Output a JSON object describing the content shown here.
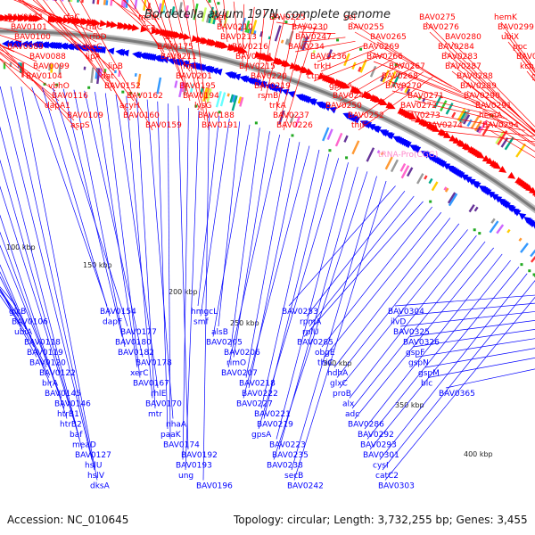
{
  "header": {
    "title": "Bordetella avium 197N, complete genome"
  },
  "footer": {
    "accession_label": "Accession:",
    "accession": "NC_010645",
    "topology_label": "Topology:",
    "topology": "circular",
    "length_label": "Length:",
    "length": "3,732,255 bp",
    "genes_label": "Genes:",
    "genes": "3,455"
  },
  "colors": {
    "forward": "#ff0000",
    "reverse": "#0000ff",
    "backbone": "#7a7a7a",
    "rna": "#ff88cc"
  },
  "scale_ticks": [
    "100 kbp",
    "150 kbp",
    "200 kbp",
    "250 kbp",
    "300 kbp",
    "350 kbp",
    "400 kbp"
  ],
  "forward_labels": [
    "BAV0111",
    "BAV0101",
    "BAV0100",
    "BAV0089",
    "BAV0088",
    "BAV0099",
    "BAV0104",
    "vbhO",
    "BAV0116",
    "dapA1",
    "BAV0109",
    "aspS",
    "rfaC",
    "rfbC",
    "rfbD",
    "dacC",
    "lipA",
    "lipB",
    "dat",
    "BAV0152",
    "BAV0162",
    "acyH",
    "BAV0160",
    "BAV0159",
    "metK",
    "cca",
    "slt",
    "BAV0175",
    "BAV0211",
    "fmt",
    "BAV0201",
    "BAV0195",
    "BAV0194",
    "lysG",
    "BAV0188",
    "BAV0191",
    "def",
    "BAV0210",
    "BAV0213",
    "BAV0216",
    "BAV0214",
    "BAV0215",
    "BAV0220",
    "BAV0219",
    "rsmB",
    "trkA",
    "BAV0237",
    "BAV0226",
    "BAV0225",
    "BAV0230",
    "BAV0247",
    "BAV0234",
    "BAV0236",
    "trkH",
    "ctpA",
    "gpmA",
    "BAV0244",
    "BAV0250",
    "BAV0252",
    "thiF",
    "cel",
    "BAV0255",
    "BAV0265",
    "BAV0269",
    "BAV0266",
    "BAV0267",
    "BAV0268",
    "BAV0270",
    "BAV0271",
    "BAV0272",
    "BAV0273",
    "BAV0274",
    "BAV0275",
    "BAV0276",
    "BAV0280",
    "BAV0284",
    "BAV0283",
    "BAV0287",
    "BAV0288",
    "BAV0289",
    "BAV0290",
    "BAV0291",
    "hemA",
    "BAV0294",
    "hemK",
    "BAV0299",
    "ubiX",
    "ppc",
    "BAV0318",
    "kch",
    "gspE"
  ],
  "rna_labels": [
    "tRNA-Pro(CGG)"
  ],
  "reverse_labels": [
    "glcB",
    "BAV0106",
    "ubiA",
    "BAV0118",
    "BAV0119",
    "BAV0120",
    "BAV0122",
    "birA",
    "BAV0145",
    "BAV0146",
    "htrB1",
    "htrB2",
    "baf",
    "meaD",
    "BAV0127",
    "hslU",
    "hslV",
    "dksA",
    "BAV0154",
    "dapF",
    "BAV0177",
    "BAV0180",
    "BAV0182",
    "BAV0178",
    "xerC",
    "BAV0167",
    "rhlE",
    "BAV0170",
    "mtr",
    "nhaA",
    "paaK",
    "BAV0174",
    "BAV0192",
    "BAV0193",
    "ung",
    "BAV0196",
    "hmgcL",
    "smf",
    "alsB",
    "BAV0205",
    "BAV0206",
    "rimO",
    "BAV0207",
    "BAV0218",
    "BAV0222",
    "BAV0227",
    "BAV0221",
    "BAV0219",
    "gpsA",
    "BAV0223",
    "BAV0235",
    "BAV0238",
    "secB",
    "BAV0242",
    "BAV0253",
    "rpmA",
    "rplU",
    "BAV0285",
    "obgE",
    "thiC",
    "hdhA",
    "glxC",
    "proB",
    "alx",
    "adc",
    "BAV0286",
    "BAV0292",
    "BAV0293",
    "BAV0301",
    "cysI",
    "catC2",
    "BAV0303",
    "BAV0304",
    "ilvD",
    "BAV0325",
    "BAV0326",
    "gspF",
    "gspN",
    "gspM",
    "blc",
    "BAV0365"
  ]
}
